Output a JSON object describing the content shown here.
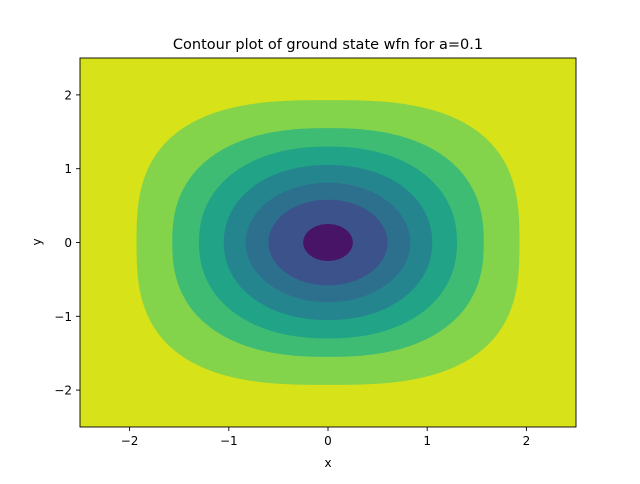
{
  "chart_data": {
    "type": "contour",
    "title": "Contour plot of ground state wfn for a=0.1",
    "xlabel": "x",
    "ylabel": "y",
    "xlim": [
      -2.5,
      2.5
    ],
    "ylim": [
      -2.5,
      2.5
    ],
    "xticks": [
      -2,
      -1,
      0,
      1,
      2
    ],
    "yticks": [
      -2,
      -1,
      0,
      1,
      2
    ],
    "xtick_labels": [
      "−2",
      "−1",
      "0",
      "1",
      "2"
    ],
    "ytick_labels": [
      "−2",
      "−1",
      "0",
      "1",
      "2"
    ],
    "grid": false,
    "colormap": "viridis",
    "background_color": "#d7e219",
    "levels": [
      {
        "color": "#84d44b",
        "rx": 1.93,
        "ry_top": 1.93,
        "ry_bottom": 1.93,
        "superellipse_n": 2.8
      },
      {
        "color": "#3fbc73",
        "rx": 1.57,
        "ry_top": 1.55,
        "ry_bottom": 1.55,
        "superellipse_n": 2.4
      },
      {
        "color": "#20a386",
        "rx": 1.3,
        "ry_top": 1.3,
        "ry_bottom": 1.3,
        "superellipse_n": 2.2
      },
      {
        "color": "#25858e",
        "rx": 1.05,
        "ry_top": 1.05,
        "ry_bottom": 1.05,
        "superellipse_n": 2.1
      },
      {
        "color": "#2d708e",
        "rx": 0.83,
        "ry_top": 0.81,
        "ry_bottom": 0.81,
        "superellipse_n": 2.0
      },
      {
        "color": "#3b528b",
        "rx": 0.6,
        "ry_top": 0.58,
        "ry_bottom": 0.58,
        "superellipse_n": 2.0
      },
      {
        "color": "#481467",
        "rx": 0.25,
        "ry_top": 0.25,
        "ry_bottom": 0.25,
        "superellipse_n": 2.0
      }
    ]
  }
}
